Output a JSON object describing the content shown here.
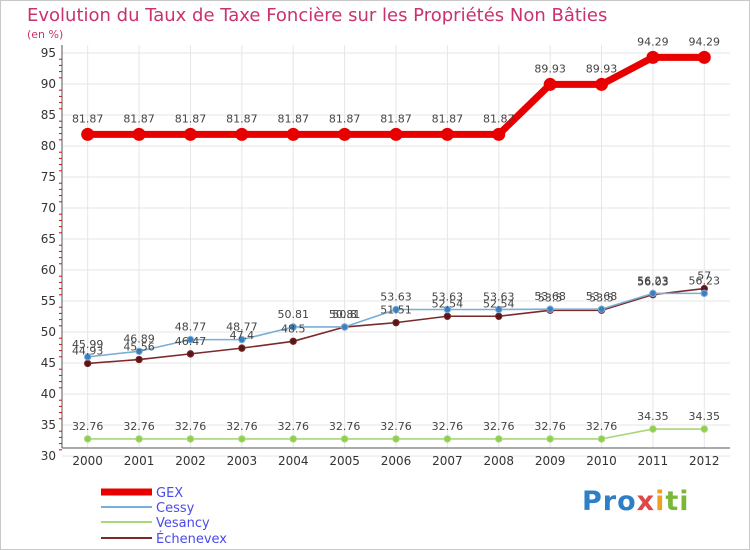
{
  "chart_data": {
    "type": "line",
    "title": "Evolution du Taux de Taxe Foncière sur les Propriétés Non Bâties",
    "ylabel": "(en %)",
    "xlabel": "",
    "ylim": [
      30,
      95
    ],
    "y_ticks": [
      "30",
      "35",
      "40",
      "45",
      "50",
      "55",
      "60",
      "65",
      "70",
      "75",
      "80",
      "85",
      "90",
      "95"
    ],
    "categories": [
      "2000",
      "2001",
      "2002",
      "2003",
      "2004",
      "2005",
      "2006",
      "2007",
      "2008",
      "2009",
      "2010",
      "2011",
      "2012"
    ],
    "grid": true,
    "legend_position": "bottom-left",
    "series": [
      {
        "name": "GEX",
        "color": "#e80000",
        "values": [
          81.87,
          81.87,
          81.87,
          81.87,
          81.87,
          81.87,
          81.87,
          81.87,
          81.87,
          89.93,
          89.93,
          94.29,
          94.29
        ],
        "labels": [
          "81.87",
          "81.87",
          "81.87",
          "81.87",
          "81.87",
          "81.87",
          "81.87",
          "81.87",
          "81.87",
          "89.93",
          "89.93",
          "94.29",
          "94.29"
        ]
      },
      {
        "name": "Cessy",
        "color": "#7aaed6",
        "values": [
          45.99,
          46.89,
          48.77,
          48.77,
          50.81,
          50.81,
          53.63,
          53.63,
          53.63,
          53.68,
          53.68,
          56.23,
          56.23
        ],
        "labels": [
          "45.99",
          "46.89",
          "48.77",
          "48.77",
          "50.81",
          "50.81",
          "53.63",
          "53.63",
          "53.63",
          "53.68",
          "53.68",
          "56.23",
          "56.23"
        ]
      },
      {
        "name": "Vesancy",
        "color": "#a8d67a",
        "values": [
          32.76,
          32.76,
          32.76,
          32.76,
          32.76,
          32.76,
          32.76,
          32.76,
          32.76,
          32.76,
          32.76,
          34.35,
          34.35
        ],
        "labels": [
          "32.76",
          "32.76",
          "32.76",
          "32.76",
          "32.76",
          "32.76",
          "32.76",
          "32.76",
          "32.76",
          "32.76",
          "32.76",
          "34.35",
          "34.35"
        ]
      },
      {
        "name": "Échenevex",
        "color": "#7a2a2a",
        "values": [
          44.93,
          45.56,
          46.47,
          47.4,
          48.5,
          50.8,
          51.51,
          52.54,
          52.54,
          53.5,
          53.5,
          56.03,
          57
        ],
        "labels": [
          "44.93",
          "45.56",
          "46.47",
          "47.4",
          "48.5",
          "50.8",
          "51.51",
          "52.54",
          "52.54",
          "53.5",
          "53.5",
          "56.03",
          "57"
        ]
      }
    ]
  },
  "logo": {
    "p1": "Pro",
    "p2": "x",
    "p3": "i",
    "p4": "ti"
  }
}
